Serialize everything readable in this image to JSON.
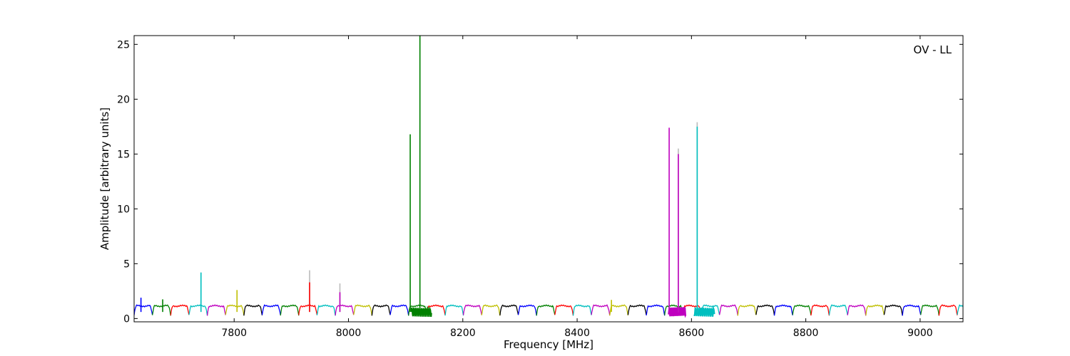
{
  "chart_data": {
    "type": "line",
    "xlabel": "Frequency [MHz]",
    "ylabel": "Amplitude [arbitrary units]",
    "annotation": "OV - LL",
    "xlim": [
      7625,
      9075
    ],
    "ylim": [
      -0.3,
      25.8
    ],
    "xticks": [
      7800,
      8000,
      8200,
      8400,
      8600,
      8800,
      9000
    ],
    "yticks": [
      0,
      5,
      10,
      15,
      20,
      25
    ],
    "grid": false,
    "legend": "none",
    "channel_width_mhz": 32,
    "channel_start_mhz": 7625,
    "baseline": {
      "plateau": 1.15,
      "dip": 0.3
    },
    "color_cycle": [
      "#0000ff",
      "#008000",
      "#ff0000",
      "#00bfbf",
      "#bf00bf",
      "#bfbf00",
      "#000000"
    ],
    "spikes": [
      {
        "x": 7637,
        "y": 1.9,
        "color": "#0000ff"
      },
      {
        "x": 7675,
        "y": 1.75,
        "color": "#008000"
      },
      {
        "x": 7742,
        "y": 4.2,
        "color": "#00bfbf"
      },
      {
        "x": 7805,
        "y": 2.6,
        "color": "#bfbf00"
      },
      {
        "x": 7932,
        "y": 4.4,
        "color": "#bbbbbb"
      },
      {
        "x": 7932,
        "y": 3.3,
        "color": "#ff0000"
      },
      {
        "x": 7985,
        "y": 3.2,
        "color": "#bbbbbb"
      },
      {
        "x": 7985,
        "y": 2.4,
        "color": "#bf00bf"
      },
      {
        "x": 8108,
        "y": 16.8,
        "color": "#008000"
      },
      {
        "x": 8125,
        "y": 25.8,
        "color": "#008000"
      },
      {
        "x": 8460,
        "y": 1.7,
        "color": "#bfbf00"
      },
      {
        "x": 8561,
        "y": 17.4,
        "color": "#bf00bf"
      },
      {
        "x": 8577,
        "y": 15.5,
        "color": "#bbbbbb"
      },
      {
        "x": 8577,
        "y": 15.0,
        "color": "#bf00bf"
      },
      {
        "x": 8610,
        "y": 17.9,
        "color": "#bbbbbb"
      },
      {
        "x": 8610,
        "y": 17.5,
        "color": "#00bfbf"
      }
    ],
    "noisy_regions": [
      {
        "x0": 8110,
        "x1": 8145,
        "color": "#008000"
      },
      {
        "x0": 8560,
        "x1": 8590,
        "color": "#bf00bf"
      },
      {
        "x0": 8605,
        "x1": 8640,
        "color": "#00bfbf"
      }
    ]
  }
}
